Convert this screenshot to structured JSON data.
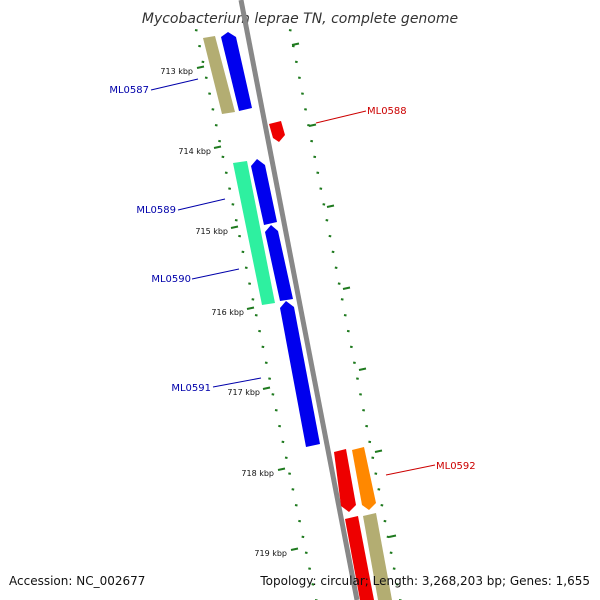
{
  "title": "Mycobacterium leprae TN, complete genome",
  "accession_text": "Accession: NC_002677",
  "info_text": "Topology: circular; Length: 3,268,203 bp; Genes: 1,655",
  "ruler_labels": [
    "713 kbp",
    "714 kbp",
    "715 kbp",
    "716 kbp",
    "717 kbp",
    "718 kbp",
    "719 kbp"
  ],
  "colors": {
    "backbone": "#888888",
    "tick_green": "#1f7a1f",
    "blue_gene": "#0000ee",
    "khaki_gene": "#b3ad72",
    "mint_gene": "#2ef0a0",
    "red_gene": "#ee0000",
    "orange_gene": "#ff8800",
    "label_blue": "#0000aa",
    "label_red": "#cc0000"
  },
  "gene_labels": [
    {
      "id": "ML0587",
      "strand": "forward",
      "color": "#0000aa"
    },
    {
      "id": "ML0588",
      "strand": "reverse",
      "color": "#cc0000"
    },
    {
      "id": "ML0589",
      "strand": "forward",
      "color": "#0000aa"
    },
    {
      "id": "ML0590",
      "strand": "forward",
      "color": "#0000aa"
    },
    {
      "id": "ML0591",
      "strand": "forward",
      "color": "#0000aa"
    },
    {
      "id": "ML0592",
      "strand": "reverse",
      "color": "#cc0000"
    }
  ]
}
